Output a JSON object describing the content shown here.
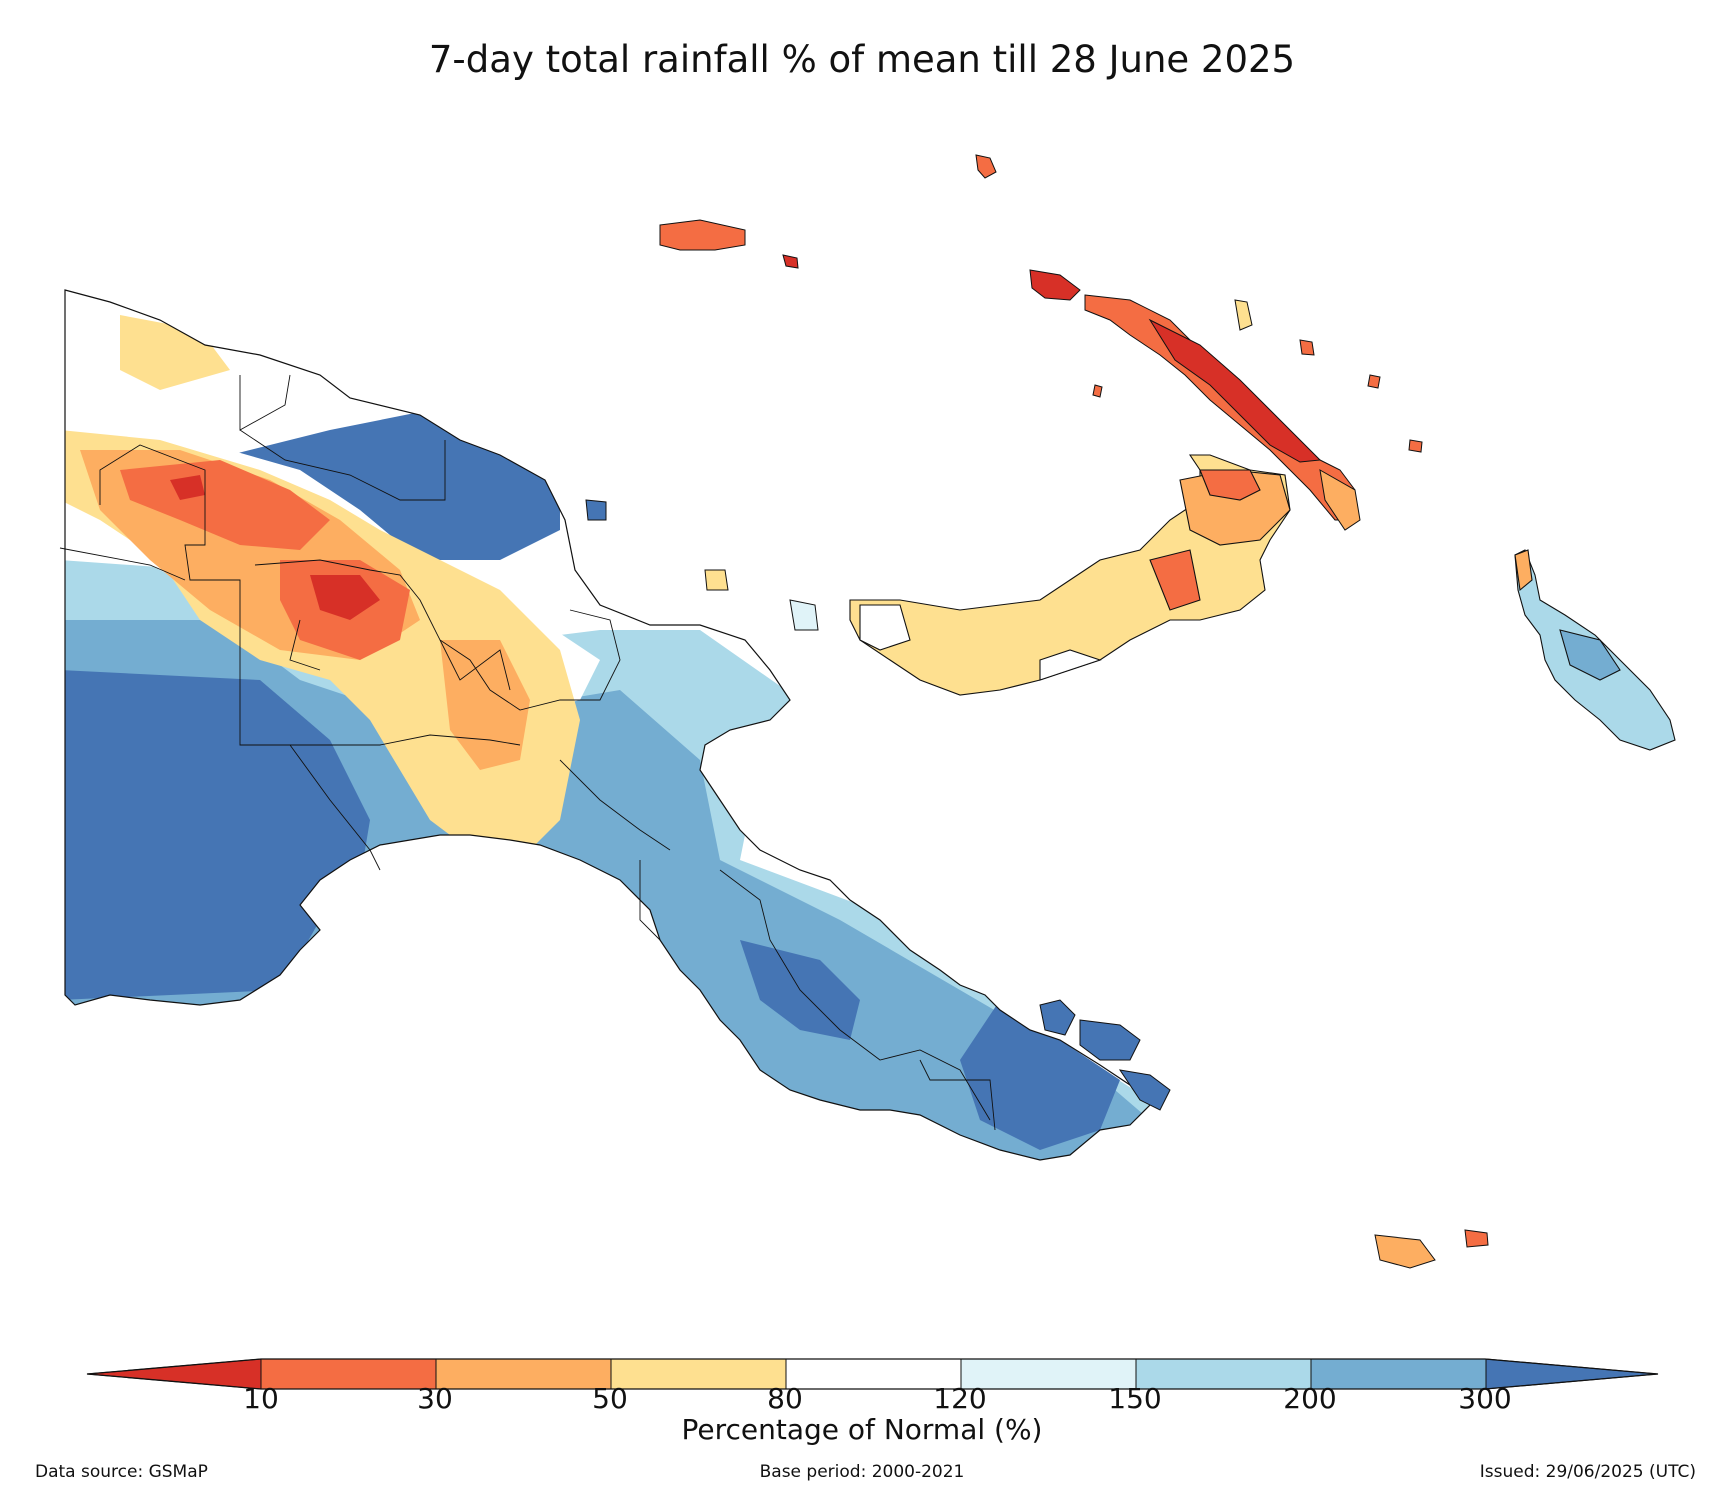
{
  "title": "7-day total rainfall % of mean till 28 June 2025",
  "legend": {
    "label": "Percentage of Normal (%)",
    "ticks": [
      "10",
      "30",
      "50",
      "80",
      "120",
      "150",
      "200",
      "300"
    ],
    "classes": [
      {
        "range": "<10",
        "color": "#d73027"
      },
      {
        "range": "10-30",
        "color": "#f46d43"
      },
      {
        "range": "30-50",
        "color": "#fdae61"
      },
      {
        "range": "50-80",
        "color": "#fee090"
      },
      {
        "range": "80-120",
        "color": "#ffffff"
      },
      {
        "range": "120-150",
        "color": "#e0f3f8"
      },
      {
        "range": "150-200",
        "color": "#abd9e9"
      },
      {
        "range": "200-300",
        "color": "#74add1"
      },
      {
        "range": ">300",
        "color": "#4575b4"
      }
    ]
  },
  "footer": {
    "source": "Data source: GSMaP",
    "base_period": "Base period: 2000-2021",
    "issued": "Issued: 29/06/2025 (UTC)"
  }
}
